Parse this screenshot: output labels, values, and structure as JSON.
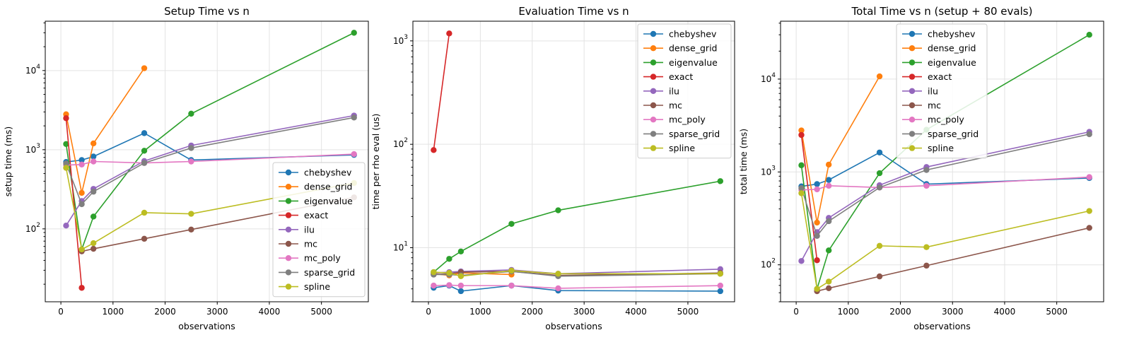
{
  "chart_data": [
    {
      "type": "line",
      "title": "Setup Time vs n",
      "xlabel": "observations",
      "ylabel": "setup time (ms)",
      "yscale": "log",
      "xlim": [
        -300,
        5900
      ],
      "ylim": [
        12,
        42000
      ],
      "xticks": [
        0,
        1000,
        2000,
        3000,
        4000,
        5000
      ],
      "yticks": [
        100,
        1000,
        10000
      ],
      "grid": true,
      "legend_position": "lower-right",
      "series": [
        {
          "name": "chebyshev",
          "color": "#1f77b4",
          "points": [
            [
              100,
              700
            ],
            [
              400,
              740
            ],
            [
              625,
              820
            ],
            [
              1600,
              1620
            ],
            [
              2500,
              740
            ],
            [
              5625,
              860
            ]
          ]
        },
        {
          "name": "dense_grid",
          "color": "#ff7f0e",
          "points": [
            [
              100,
              2800
            ],
            [
              400,
              285
            ],
            [
              625,
              1200
            ],
            [
              1600,
              10700
            ]
          ]
        },
        {
          "name": "eigenvalue",
          "color": "#2ca02c",
          "points": [
            [
              100,
              1180
            ],
            [
              400,
              55
            ],
            [
              625,
              143
            ],
            [
              1600,
              970
            ],
            [
              2500,
              2850
            ],
            [
              5625,
              30000
            ]
          ]
        },
        {
          "name": "exact",
          "color": "#d62728",
          "points": [
            [
              100,
              2500
            ],
            [
              400,
              18
            ]
          ]
        },
        {
          "name": "ilu",
          "color": "#9467bd",
          "points": [
            [
              100,
              110
            ],
            [
              400,
              225
            ],
            [
              625,
              320
            ],
            [
              1600,
              720
            ],
            [
              2500,
              1130
            ],
            [
              5625,
              2700
            ]
          ]
        },
        {
          "name": "mc",
          "color": "#8c564b",
          "points": [
            [
              400,
              52
            ],
            [
              625,
              56
            ],
            [
              1600,
              75
            ],
            [
              2500,
              98
            ],
            [
              5625,
              250
            ]
          ]
        },
        {
          "name": "mc_poly",
          "color": "#e377c2",
          "points": [
            [
              100,
              640
            ],
            [
              400,
              650
            ],
            [
              625,
              710
            ],
            [
              1600,
              680
            ],
            [
              2500,
              710
            ],
            [
              5625,
              880
            ]
          ]
        },
        {
          "name": "sparse_grid",
          "color": "#7f7f7f",
          "points": [
            [
              100,
              670
            ],
            [
              400,
              205
            ],
            [
              625,
              295
            ],
            [
              1600,
              680
            ],
            [
              2500,
              1050
            ],
            [
              5625,
              2550
            ]
          ]
        },
        {
          "name": "spline",
          "color": "#bcbd22",
          "points": [
            [
              100,
              590
            ],
            [
              400,
              55
            ],
            [
              625,
              66
            ],
            [
              1600,
              160
            ],
            [
              2500,
              155
            ],
            [
              5625,
              380
            ]
          ]
        }
      ]
    },
    {
      "type": "line",
      "title": "Evaluation Time vs n",
      "xlabel": "observations",
      "ylabel": "time per rho eval (us)",
      "yscale": "log",
      "xlim": [
        -300,
        5900
      ],
      "ylim": [
        3.0,
        1550
      ],
      "xticks": [
        0,
        1000,
        2000,
        3000,
        4000,
        5000
      ],
      "yticks": [
        10,
        100,
        1000
      ],
      "grid": true,
      "legend_position": "top-right",
      "series": [
        {
          "name": "chebyshev",
          "color": "#1f77b4",
          "points": [
            [
              100,
              4.1
            ],
            [
              400,
              4.3
            ],
            [
              625,
              3.8
            ],
            [
              1600,
              4.3
            ],
            [
              2500,
              3.85
            ],
            [
              5625,
              3.8
            ]
          ]
        },
        {
          "name": "dense_grid",
          "color": "#ff7f0e",
          "points": [
            [
              100,
              5.6
            ],
            [
              400,
              5.4
            ],
            [
              625,
              5.7
            ],
            [
              1600,
              5.5
            ]
          ]
        },
        {
          "name": "eigenvalue",
          "color": "#2ca02c",
          "points": [
            [
              100,
              5.8
            ],
            [
              400,
              7.8
            ],
            [
              625,
              9.2
            ],
            [
              1600,
              17
            ],
            [
              2500,
              23
            ],
            [
              5625,
              44
            ]
          ]
        },
        {
          "name": "exact",
          "color": "#d62728",
          "points": [
            [
              100,
              88
            ],
            [
              400,
              1180
            ]
          ]
        },
        {
          "name": "ilu",
          "color": "#9467bd",
          "points": [
            [
              100,
              5.7
            ],
            [
              400,
              5.8
            ],
            [
              625,
              5.9
            ],
            [
              1600,
              6.1
            ],
            [
              2500,
              5.6
            ],
            [
              5625,
              6.2
            ]
          ]
        },
        {
          "name": "mc",
          "color": "#8c564b",
          "points": [
            [
              100,
              5.5
            ],
            [
              400,
              5.6
            ],
            [
              625,
              5.8
            ],
            [
              1600,
              5.9
            ],
            [
              2500,
              5.4
            ],
            [
              5625,
              5.7
            ]
          ]
        },
        {
          "name": "mc_poly",
          "color": "#e377c2",
          "points": [
            [
              100,
              4.3
            ],
            [
              400,
              4.35
            ],
            [
              625,
              4.3
            ],
            [
              1600,
              4.3
            ],
            [
              2500,
              4.05
            ],
            [
              5625,
              4.3
            ]
          ]
        },
        {
          "name": "sparse_grid",
          "color": "#7f7f7f",
          "points": [
            [
              100,
              5.5
            ],
            [
              400,
              5.5
            ],
            [
              625,
              5.4
            ],
            [
              1600,
              5.9
            ],
            [
              2500,
              5.3
            ],
            [
              5625,
              5.6
            ]
          ]
        },
        {
          "name": "spline",
          "color": "#bcbd22",
          "points": [
            [
              100,
              5.8
            ],
            [
              400,
              5.7
            ],
            [
              625,
              5.3
            ],
            [
              1600,
              6.0
            ],
            [
              2500,
              5.6
            ],
            [
              5625,
              5.6
            ]
          ]
        }
      ]
    },
    {
      "type": "line",
      "title": "Total Time vs n (setup + 80 evals)",
      "xlabel": "observations",
      "ylabel": "total time (ms)",
      "yscale": "log",
      "xlim": [
        -300,
        5900
      ],
      "ylim": [
        40,
        42000
      ],
      "xticks": [
        0,
        1000,
        2000,
        3000,
        4000,
        5000
      ],
      "yticks": [
        100,
        1000,
        10000
      ],
      "grid": true,
      "legend_position": "top-center",
      "series": [
        {
          "name": "chebyshev",
          "color": "#1f77b4",
          "points": [
            [
              100,
              700
            ],
            [
              400,
              740
            ],
            [
              625,
              820
            ],
            [
              1600,
              1620
            ],
            [
              2500,
              740
            ],
            [
              5625,
              860
            ]
          ]
        },
        {
          "name": "dense_grid",
          "color": "#ff7f0e",
          "points": [
            [
              100,
              2800
            ],
            [
              400,
              285
            ],
            [
              625,
              1200
            ],
            [
              1600,
              10700
            ]
          ]
        },
        {
          "name": "eigenvalue",
          "color": "#2ca02c",
          "points": [
            [
              100,
              1180
            ],
            [
              400,
              55
            ],
            [
              625,
              143
            ],
            [
              1600,
              970
            ],
            [
              2500,
              2850
            ],
            [
              5625,
              30000
            ]
          ]
        },
        {
          "name": "exact",
          "color": "#d62728",
          "points": [
            [
              100,
              2500
            ],
            [
              400,
              112
            ]
          ]
        },
        {
          "name": "ilu",
          "color": "#9467bd",
          "points": [
            [
              100,
              110
            ],
            [
              400,
              225
            ],
            [
              625,
              320
            ],
            [
              1600,
              720
            ],
            [
              2500,
              1130
            ],
            [
              5625,
              2700
            ]
          ]
        },
        {
          "name": "mc",
          "color": "#8c564b",
          "points": [
            [
              400,
              52
            ],
            [
              625,
              56
            ],
            [
              1600,
              75
            ],
            [
              2500,
              98
            ],
            [
              5625,
              250
            ]
          ]
        },
        {
          "name": "mc_poly",
          "color": "#e377c2",
          "points": [
            [
              100,
              640
            ],
            [
              400,
              650
            ],
            [
              625,
              710
            ],
            [
              1600,
              680
            ],
            [
              2500,
              710
            ],
            [
              5625,
              880
            ]
          ]
        },
        {
          "name": "sparse_grid",
          "color": "#7f7f7f",
          "points": [
            [
              100,
              670
            ],
            [
              400,
              205
            ],
            [
              625,
              295
            ],
            [
              1600,
              680
            ],
            [
              2500,
              1050
            ],
            [
              5625,
              2550
            ]
          ]
        },
        {
          "name": "spline",
          "color": "#bcbd22",
          "points": [
            [
              100,
              590
            ],
            [
              400,
              55
            ],
            [
              625,
              66
            ],
            [
              1600,
              160
            ],
            [
              2500,
              155
            ],
            [
              5625,
              380
            ]
          ]
        }
      ]
    }
  ]
}
